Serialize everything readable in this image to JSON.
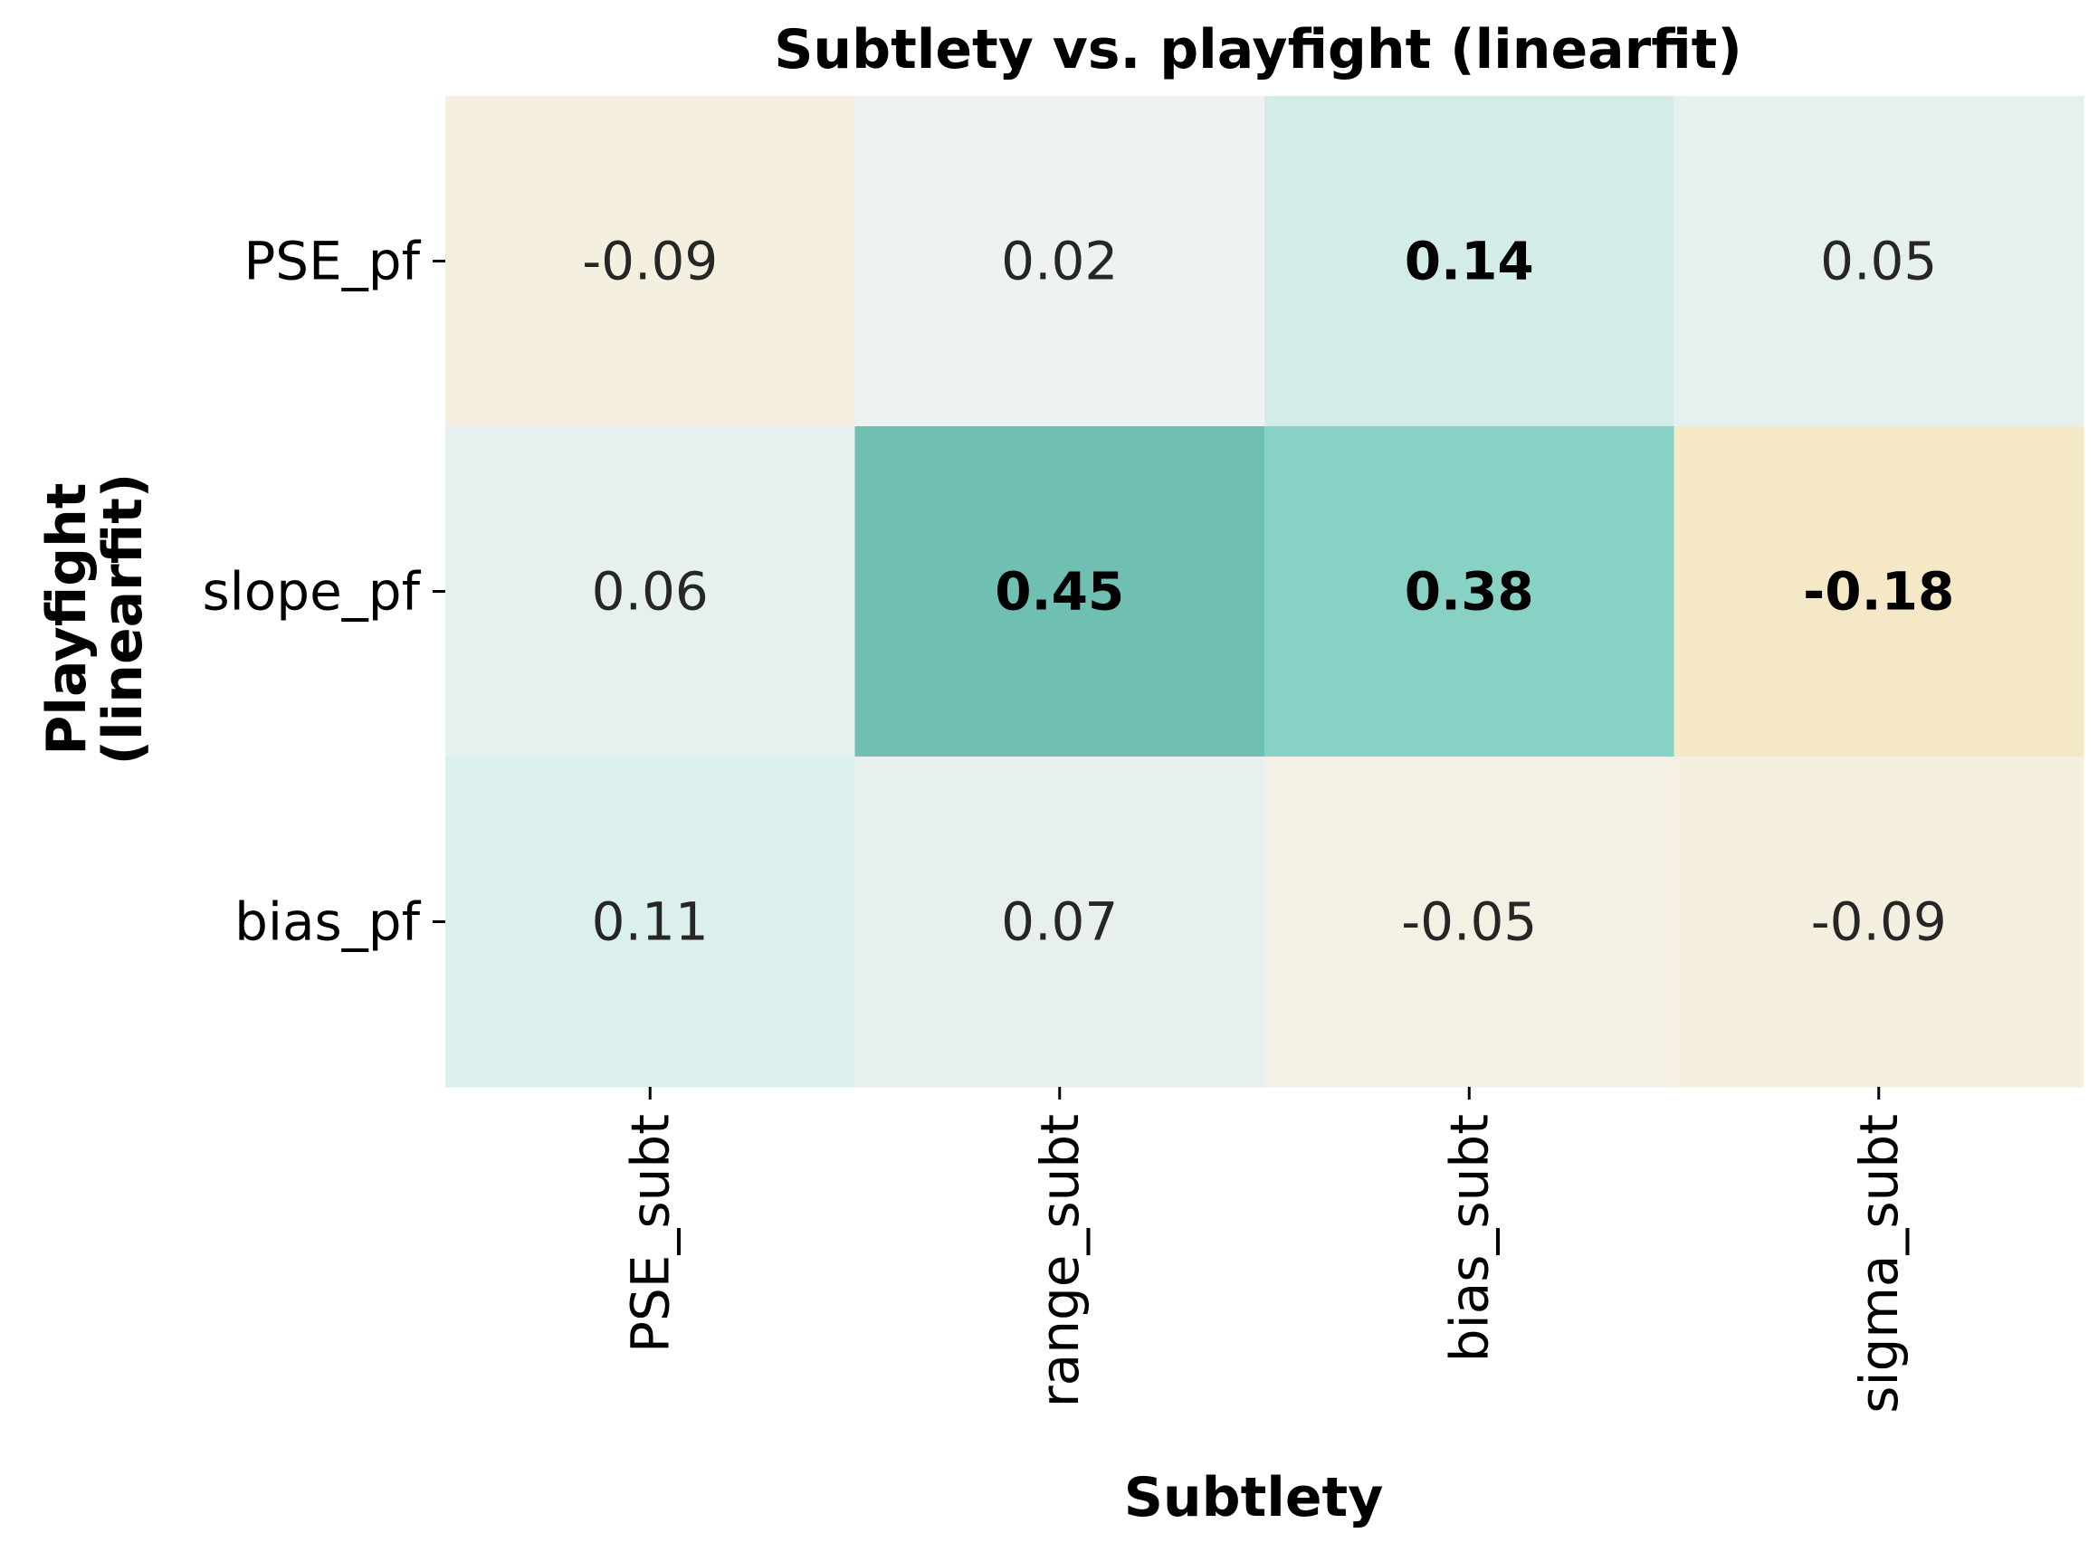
{
  "chart_data": {
    "type": "heatmap",
    "title": "Subtlety vs. playfight  (linearfit)",
    "xlabel": "Subtlety",
    "ylabel_lines": [
      "Playfight",
      "(linearfit)"
    ],
    "x_categories": [
      "PSE_subt",
      "range_subt",
      "bias_subt",
      "sigma_subt"
    ],
    "y_categories": [
      "PSE_pf",
      "slope_pf",
      "bias_pf"
    ],
    "values": [
      [
        -0.09,
        0.02,
        0.14,
        0.05
      ],
      [
        0.06,
        0.45,
        0.38,
        -0.18
      ],
      [
        0.11,
        0.07,
        -0.05,
        -0.09
      ]
    ],
    "cell_labels": [
      [
        "-0.09",
        "0.02",
        "0.14",
        "0.05"
      ],
      [
        "0.06",
        "0.45",
        "0.38",
        "-0.18"
      ],
      [
        "0.11",
        "0.07",
        "-0.05",
        "-0.09"
      ]
    ],
    "bold": [
      [
        false,
        false,
        true,
        false
      ],
      [
        false,
        true,
        true,
        true
      ],
      [
        false,
        false,
        false,
        false
      ]
    ],
    "cell_colors": [
      [
        "#f5efdf",
        "#eef3f1",
        "#d4ece8",
        "#e6f0ef"
      ],
      [
        "#e6f0ef",
        "#6fbfb3",
        "#88d1c5",
        "#f5e8c7"
      ],
      [
        "#dbefec",
        "#e8f0ef",
        "#f4f1e4",
        "#f5efdf"
      ]
    ],
    "colorbar": false,
    "grid": false
  }
}
